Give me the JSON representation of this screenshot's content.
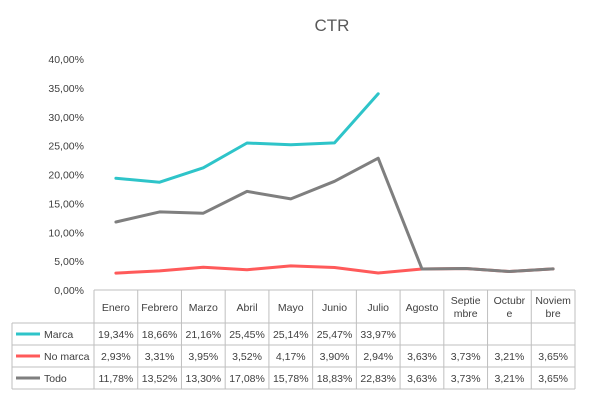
{
  "chart_data": {
    "type": "line",
    "title": "CTR",
    "categories": [
      "Enero",
      "Febrero",
      "Marzo",
      "Abril",
      "Mayo",
      "Junio",
      "Julio",
      "Agosto",
      "Septiembre",
      "Octubre",
      "Noviembre"
    ],
    "category_display": [
      [
        "Enero"
      ],
      [
        "Febrero"
      ],
      [
        "Marzo"
      ],
      [
        "Abril"
      ],
      [
        "Mayo"
      ],
      [
        "Junio"
      ],
      [
        "Julio"
      ],
      [
        "Agosto"
      ],
      [
        "Septie",
        "mbre"
      ],
      [
        "Octubr",
        "e"
      ],
      [
        "Noviem",
        "bre"
      ]
    ],
    "ylim": [
      0,
      40
    ],
    "yticks": [
      0,
      5,
      10,
      15,
      20,
      25,
      30,
      35,
      40
    ],
    "ytick_labels": [
      "0,00%",
      "5,00%",
      "10,00%",
      "15,00%",
      "20,00%",
      "25,00%",
      "30,00%",
      "35,00%",
      "40,00%"
    ],
    "grid": false,
    "legend": "data-table",
    "series": [
      {
        "name": "Marca",
        "color": "#2EC4C9",
        "values": [
          19.34,
          18.66,
          21.16,
          25.45,
          25.14,
          25.47,
          33.97,
          null,
          null,
          null,
          null
        ],
        "labels": [
          "19,34%",
          "18,66%",
          "21,16%",
          "25,45%",
          "25,14%",
          "25,47%",
          "33,97%",
          "",
          "",
          "",
          ""
        ]
      },
      {
        "name": "No marca",
        "color": "#FF5A5A",
        "values": [
          2.93,
          3.31,
          3.95,
          3.52,
          4.17,
          3.9,
          2.94,
          3.63,
          3.73,
          3.21,
          3.65
        ],
        "labels": [
          "2,93%",
          "3,31%",
          "3,95%",
          "3,52%",
          "4,17%",
          "3,90%",
          "2,94%",
          "3,63%",
          "3,73%",
          "3,21%",
          "3,65%"
        ]
      },
      {
        "name": "Todo",
        "color": "#7F7F7F",
        "values": [
          11.78,
          13.52,
          13.3,
          17.08,
          15.78,
          18.83,
          22.83,
          3.63,
          3.73,
          3.21,
          3.65
        ],
        "labels": [
          "11,78%",
          "13,52%",
          "13,30%",
          "17,08%",
          "15,78%",
          "18,83%",
          "22,83%",
          "3,63%",
          "3,73%",
          "3,21%",
          "3,65%"
        ]
      }
    ]
  }
}
